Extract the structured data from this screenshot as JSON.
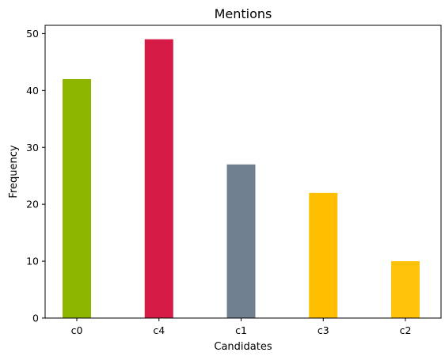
{
  "chart_data": {
    "type": "bar",
    "title": "Mentions",
    "xlabel": "Candidates",
    "ylabel": "Frequency",
    "categories": [
      "c0",
      "c4",
      "c1",
      "c3",
      "c2"
    ],
    "values": [
      42,
      49,
      27,
      22,
      10
    ],
    "colors": [
      "#8db600",
      "#d41a45",
      "#708090",
      "#ffbf00",
      "#ffc30b"
    ],
    "yticks": [
      0,
      10,
      20,
      30,
      40,
      50
    ],
    "ylim": [
      0,
      51.45
    ],
    "grid": false,
    "legend": false
  }
}
